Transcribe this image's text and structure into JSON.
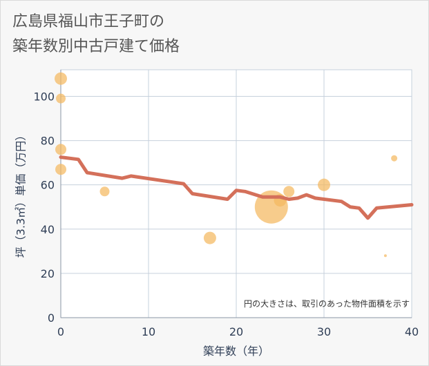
{
  "title": {
    "line1": "広島県福山市王子町の",
    "line2": "築年数別中古戸建て価格"
  },
  "note": "円の大きさは、取引のあった物件面積を示す",
  "colors": {
    "line": "#d4705a",
    "bubble": "#f4b860",
    "grid": "#c6d0dc",
    "plot_bg": "#ffffff"
  },
  "chart_data": {
    "type": "scatter",
    "xlabel": "築年数（年）",
    "ylabel": "坪（3.3㎡）単価（万円）",
    "xlim": [
      0,
      40
    ],
    "ylim": [
      0,
      112
    ],
    "x_ticks": [
      0,
      10,
      20,
      30,
      40
    ],
    "y_ticks": [
      0,
      20,
      40,
      60,
      80,
      100
    ],
    "grid": true,
    "trend_line": {
      "x": [
        0,
        2,
        3,
        7,
        8,
        14,
        15,
        19,
        20,
        21,
        23,
        25,
        26,
        27,
        28,
        29,
        32,
        33,
        34,
        35,
        36,
        40
      ],
      "y": [
        72.5,
        71.5,
        65.5,
        63,
        64,
        60.5,
        56,
        53.5,
        57.5,
        57,
        54.5,
        54.5,
        53.5,
        54,
        55.5,
        54,
        52.5,
        50,
        49.5,
        45,
        49.5,
        51
      ]
    },
    "bubbles": [
      {
        "x": 0,
        "y": 108,
        "size": 9
      },
      {
        "x": 0,
        "y": 99,
        "size": 7
      },
      {
        "x": 0,
        "y": 76,
        "size": 8
      },
      {
        "x": 0,
        "y": 67,
        "size": 8
      },
      {
        "x": 5,
        "y": 57,
        "size": 7
      },
      {
        "x": 17,
        "y": 36,
        "size": 9
      },
      {
        "x": 24,
        "y": 50,
        "size": 24
      },
      {
        "x": 25,
        "y": 53,
        "size": 9
      },
      {
        "x": 26,
        "y": 57,
        "size": 8
      },
      {
        "x": 30,
        "y": 60,
        "size": 9
      },
      {
        "x": 37,
        "y": 28,
        "size": 2
      },
      {
        "x": 38,
        "y": 72,
        "size": 4.5
      }
    ]
  }
}
